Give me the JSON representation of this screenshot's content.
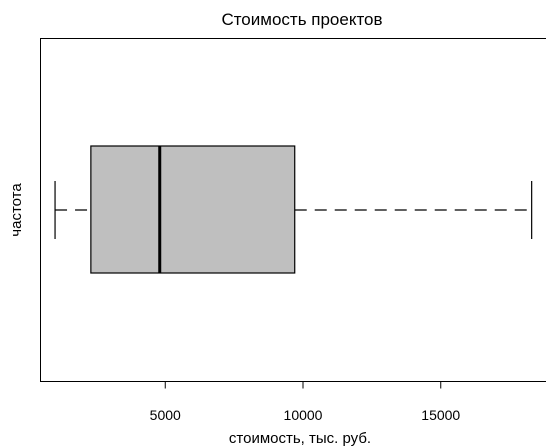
{
  "chart_data": {
    "type": "boxplot",
    "title": "Стоимость проектов",
    "xlabel": "стоимость, тыс. руб.",
    "ylabel": "частота",
    "xlim": [
      0,
      19000
    ],
    "x_ticks": [
      5000,
      10000,
      15000
    ],
    "x_tick_labels": [
      "5000",
      "10000",
      "15000"
    ],
    "grid": false,
    "box": {
      "whisker_low": 1000,
      "q1": 2300,
      "median": 4800,
      "q3": 9700,
      "whisker_high": 18300
    },
    "colors": {
      "box_fill": "#bfbfbf",
      "stroke": "#000000"
    }
  }
}
